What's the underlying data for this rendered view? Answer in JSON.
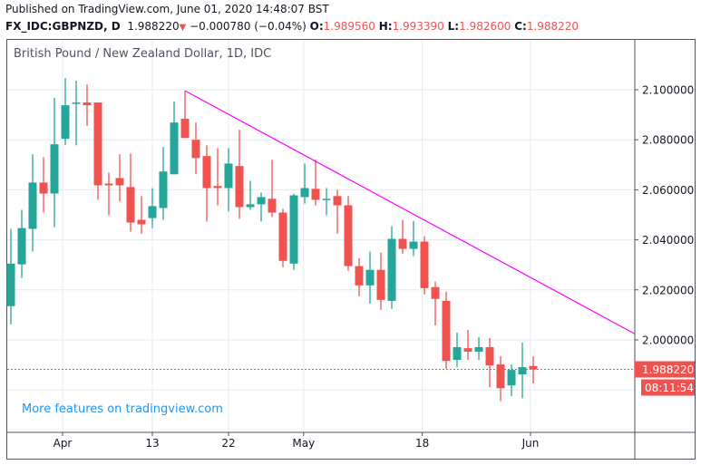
{
  "header": {
    "published": "Published on TradingView.com, June 01, 2020 14:48:07 BST",
    "symbol": "FX_IDC:GBPNZD, D",
    "last": "1.988220",
    "change": "−0.000780 (−0.04%)",
    "o_label": "O:",
    "o": "1.989560",
    "h_label": "H:",
    "h": "1.993390",
    "l_label": "L:",
    "l": "1.982600",
    "c_label": "C:",
    "c": "1.988220",
    "direction_icon": "triangle-down-icon"
  },
  "legend": "British Pound / New Zealand Dollar, 1D, IDC",
  "promo_link": "More features on tradingview.com",
  "price_tag": "1.988220",
  "countdown_tag": "08:11:54",
  "colors": {
    "up": "#26a69a",
    "down": "#ef5350",
    "trendline": "#ff00ff",
    "grid": "#e1ecf2"
  },
  "chart_data": {
    "type": "candlestick",
    "title": "British Pound / New Zealand Dollar, 1D, IDC",
    "y_ticks": [
      "2.100000",
      "2.080000",
      "2.060000",
      "2.040000",
      "2.020000",
      "2.000000"
    ],
    "y_tick_values": [
      2.1,
      2.08,
      2.06,
      2.04,
      2.02,
      2.0
    ],
    "ylim": [
      1.965,
      2.115
    ],
    "x_ticks": [
      {
        "label": "Apr",
        "index": 4.75
      },
      {
        "label": "13",
        "index": 13
      },
      {
        "label": "22",
        "index": 20
      },
      {
        "label": "May",
        "index": 26.9
      },
      {
        "label": "18",
        "index": 37.8
      },
      {
        "label": "Jun",
        "index": 47.75
      }
    ],
    "candles": [
      [
        2.0135,
        2.0444,
        2.0062,
        2.0305
      ],
      [
        2.0302,
        2.052,
        2.0247,
        2.0447
      ],
      [
        2.0444,
        2.0742,
        2.0353,
        2.0629
      ],
      [
        2.0629,
        2.0731,
        2.0509,
        2.0585
      ],
      [
        2.0585,
        2.0967,
        2.0451,
        2.0782
      ],
      [
        2.0804,
        2.1047,
        2.0778,
        2.0938
      ],
      [
        2.0945,
        2.1036,
        2.0778,
        2.0949
      ],
      [
        2.0949,
        2.1022,
        2.0855,
        2.0938
      ],
      [
        2.0949,
        2.0949,
        2.056,
        2.0618
      ],
      [
        2.0625,
        2.0669,
        2.0498,
        2.0618
      ],
      [
        2.0647,
        2.0742,
        2.0553,
        2.0618
      ],
      [
        2.0611,
        2.0745,
        2.0433,
        2.0469
      ],
      [
        2.048,
        2.0575,
        2.0425,
        2.0462
      ],
      [
        2.0487,
        2.0607,
        2.0447,
        2.0535
      ],
      [
        2.0527,
        2.0771,
        2.048,
        2.0673
      ],
      [
        2.0662,
        2.0953,
        2.0662,
        2.0869
      ],
      [
        2.0884,
        2.0996,
        2.0807,
        2.0807
      ],
      [
        2.08,
        2.0869,
        2.0662,
        2.0727
      ],
      [
        2.0735,
        2.0778,
        2.0473,
        2.0607
      ],
      [
        2.0615,
        2.0767,
        2.0538,
        2.0607
      ],
      [
        2.0607,
        2.0767,
        2.0513,
        2.0705
      ],
      [
        2.0695,
        2.084,
        2.0484,
        2.0531
      ],
      [
        2.0531,
        2.0636,
        2.052,
        2.0542
      ],
      [
        2.0542,
        2.0589,
        2.0473,
        2.0571
      ],
      [
        2.0564,
        2.072,
        2.0491,
        2.0509
      ],
      [
        2.0509,
        2.0524,
        2.0291,
        2.0316
      ],
      [
        2.0305,
        2.0585,
        2.028,
        2.0578
      ],
      [
        2.0571,
        2.0705,
        2.0545,
        2.0607
      ],
      [
        2.0604,
        2.072,
        2.0538,
        2.056
      ],
      [
        2.056,
        2.0607,
        2.0498,
        2.0564
      ],
      [
        2.0575,
        2.06,
        2.0425,
        2.0538
      ],
      [
        2.0538,
        2.0575,
        2.0276,
        2.0295
      ],
      [
        2.0295,
        2.0327,
        2.0175,
        2.0218
      ],
      [
        2.0218,
        2.0353,
        2.0145,
        2.028
      ],
      [
        2.028,
        2.0349,
        2.012,
        2.016
      ],
      [
        2.0156,
        2.0455,
        2.0124,
        2.0404
      ],
      [
        2.0404,
        2.048,
        2.0345,
        2.0364
      ],
      [
        2.0364,
        2.0476,
        2.0335,
        2.0393
      ],
      [
        2.0393,
        2.0415,
        2.0182,
        2.0207
      ],
      [
        2.0211,
        2.0233,
        2.0058,
        2.0164
      ],
      [
        2.0156,
        2.0193,
        1.9884,
        1.9916
      ],
      [
        1.992,
        2.0029,
        1.9891,
        1.9971
      ],
      [
        1.9967,
        2.004,
        1.992,
        1.9953
      ],
      [
        1.9953,
        2.0011,
        1.992,
        1.9971
      ],
      [
        1.9971,
        2.0007,
        1.9811,
        1.9898
      ],
      [
        1.9902,
        1.9935,
        1.9756,
        1.9807
      ],
      [
        1.9818,
        1.9902,
        1.9775,
        1.988
      ],
      [
        1.9862,
        1.9989,
        1.9767,
        1.9891
      ],
      [
        1.98956,
        1.99339,
        1.9826,
        1.98822
      ]
    ],
    "candle_fields": [
      "open",
      "high",
      "low",
      "close"
    ],
    "trendline": [
      [
        16,
        2.0996
      ],
      [
        57.3,
        2.0025
      ]
    ],
    "current_price": 1.98822,
    "grid": true
  }
}
